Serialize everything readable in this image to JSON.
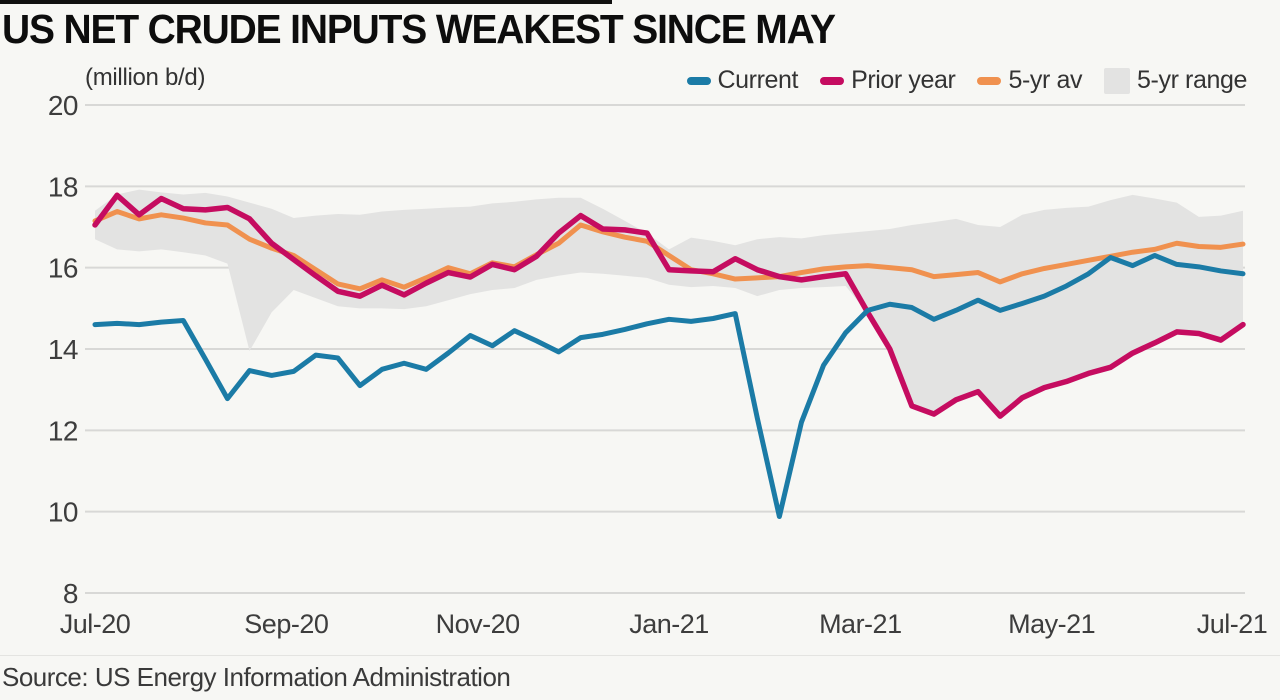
{
  "title": "US NET CRUDE INPUTS WEAKEST SINCE MAY",
  "unit_label": "(million b/d)",
  "source": "Source: US Energy Information Administration",
  "colors": {
    "current": "#1b7ba6",
    "prior_year": "#c50c60",
    "five_yr_av": "#f0914f",
    "five_yr_range": "#e3e3e2",
    "gridline": "#d8d8d6",
    "tick_text": "#3d3d3d",
    "background": "#f7f7f4"
  },
  "legend": [
    {
      "label": "Current",
      "type": "line",
      "color": "#1b7ba6"
    },
    {
      "label": "Prior year",
      "type": "line",
      "color": "#c50c60"
    },
    {
      "label": "5-yr av",
      "type": "line",
      "color": "#f0914f"
    },
    {
      "label": "5-yr range",
      "type": "area",
      "color": "#e3e3e2"
    }
  ],
  "chart_data": {
    "type": "line",
    "title": "US NET CRUDE INPUTS WEAKEST SINCE MAY",
    "ylabel": "(million b/d)",
    "x_unit": "weeks from Jul-20 to Jul-21",
    "xlim": [
      0,
      52
    ],
    "ylim": [
      8,
      20
    ],
    "grid": "horizontal",
    "legend_position": "top-right",
    "x_tick_labels": [
      "Jul-20",
      "Sep-20",
      "Nov-20",
      "Jan-21",
      "Mar-21",
      "May-21",
      "Jul-21"
    ],
    "x_tick_positions": [
      0,
      8.667,
      17.333,
      26,
      34.667,
      43.333,
      52
    ],
    "y_ticks": [
      8,
      10,
      12,
      14,
      16,
      18,
      20
    ],
    "series": [
      {
        "name": "Current",
        "color": "#1b7ba6",
        "width": 5,
        "values": [
          14.6,
          14.63,
          14.6,
          14.66,
          14.7,
          13.75,
          12.78,
          13.47,
          13.35,
          13.45,
          13.85,
          13.78,
          13.1,
          13.5,
          13.65,
          13.5,
          13.9,
          14.33,
          14.08,
          14.45,
          14.2,
          13.93,
          14.28,
          14.36,
          14.48,
          14.62,
          14.73,
          14.68,
          14.75,
          14.87,
          12.3,
          9.88,
          12.2,
          13.6,
          14.4,
          14.95,
          15.1,
          15.02,
          14.73,
          14.95,
          15.2,
          14.95,
          15.12,
          15.3,
          15.55,
          15.85,
          16.25,
          16.05,
          16.3,
          16.08,
          16.02,
          15.92,
          15.85
        ]
      },
      {
        "name": "Prior year",
        "color": "#c50c60",
        "width": 5.5,
        "values": [
          17.05,
          17.78,
          17.3,
          17.7,
          17.45,
          17.42,
          17.48,
          17.2,
          16.6,
          16.2,
          15.8,
          15.42,
          15.3,
          15.57,
          15.33,
          15.62,
          15.88,
          15.77,
          16.08,
          15.95,
          16.28,
          16.85,
          17.28,
          16.95,
          16.93,
          16.85,
          15.95,
          15.92,
          15.9,
          16.22,
          15.95,
          15.78,
          15.7,
          15.78,
          15.85,
          14.9,
          14.0,
          12.6,
          12.4,
          12.75,
          12.95,
          12.35,
          12.8,
          13.05,
          13.2,
          13.4,
          13.55,
          13.9,
          14.15,
          14.42,
          14.38,
          14.22,
          14.6
        ]
      },
      {
        "name": "5-yr av",
        "color": "#f0914f",
        "width": 5,
        "values": [
          17.15,
          17.38,
          17.2,
          17.3,
          17.22,
          17.1,
          17.05,
          16.7,
          16.48,
          16.3,
          15.95,
          15.6,
          15.48,
          15.7,
          15.52,
          15.75,
          16.0,
          15.85,
          16.12,
          16.02,
          16.32,
          16.6,
          17.05,
          16.88,
          16.75,
          16.65,
          16.3,
          15.95,
          15.85,
          15.72,
          15.75,
          15.78,
          15.88,
          15.97,
          16.02,
          16.05,
          16.0,
          15.95,
          15.78,
          15.83,
          15.88,
          15.65,
          15.85,
          15.98,
          16.08,
          16.18,
          16.28,
          16.38,
          16.45,
          16.6,
          16.52,
          16.5,
          16.58
        ]
      }
    ],
    "range_band": {
      "name": "5-yr range",
      "color": "#e3e3e2",
      "upper": [
        17.4,
        17.8,
        17.92,
        17.85,
        17.8,
        17.84,
        17.75,
        17.6,
        17.45,
        17.22,
        17.28,
        17.32,
        17.3,
        17.38,
        17.42,
        17.45,
        17.48,
        17.5,
        17.58,
        17.62,
        17.68,
        17.72,
        17.72,
        17.45,
        17.15,
        16.85,
        16.45,
        16.74,
        16.66,
        16.55,
        16.7,
        16.75,
        16.72,
        16.8,
        16.85,
        16.9,
        16.95,
        17.05,
        17.12,
        17.2,
        17.05,
        17.0,
        17.3,
        17.42,
        17.47,
        17.5,
        17.66,
        17.79,
        17.7,
        17.6,
        17.25,
        17.28,
        17.4
      ],
      "lower": [
        16.7,
        16.45,
        16.4,
        16.45,
        16.38,
        16.3,
        16.1,
        13.95,
        14.9,
        15.45,
        15.25,
        15.05,
        15.0,
        15.0,
        14.98,
        15.05,
        15.2,
        15.35,
        15.45,
        15.5,
        15.7,
        15.8,
        15.88,
        15.85,
        15.8,
        15.75,
        15.58,
        15.52,
        15.55,
        15.5,
        15.3,
        15.45,
        15.5,
        15.52,
        15.55,
        14.88,
        13.98,
        12.58,
        12.38,
        12.72,
        12.92,
        12.33,
        12.78,
        13.02,
        13.18,
        13.38,
        13.52,
        13.88,
        14.12,
        14.4,
        14.36,
        14.2,
        14.55
      ]
    }
  }
}
